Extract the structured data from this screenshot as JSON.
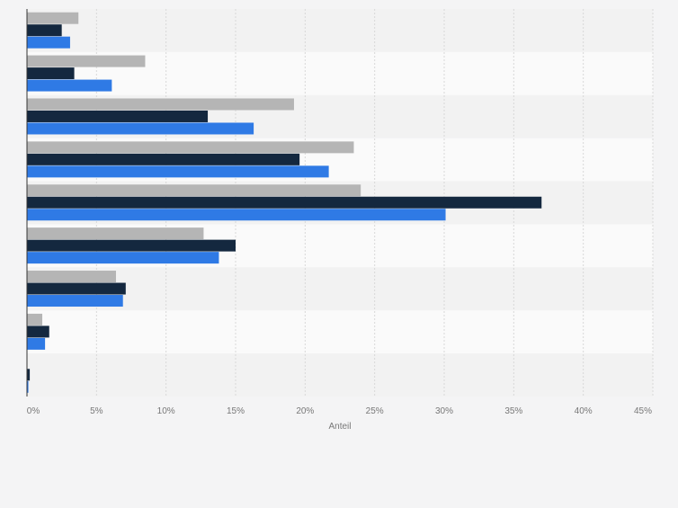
{
  "chart_data": {
    "type": "bar",
    "orientation": "horizontal",
    "categories": [
      "",
      "",
      "",
      "",
      "",
      "",
      "",
      "",
      ""
    ],
    "series": [
      {
        "color": "#b5b5b5",
        "values": [
          3.7,
          8.5,
          19.2,
          23.5,
          24.0,
          12.7,
          6.4,
          1.1,
          0.0
        ]
      },
      {
        "color": "#14283f",
        "values": [
          2.5,
          3.4,
          13.0,
          19.6,
          37.0,
          15.0,
          7.1,
          1.6,
          0.2
        ]
      },
      {
        "color": "#2f7ae5",
        "values": [
          3.1,
          6.1,
          16.3,
          21.7,
          30.1,
          13.8,
          6.9,
          1.3,
          0.1
        ]
      }
    ],
    "xlim": [
      0,
      45
    ],
    "xticks": [
      "0%",
      "5%",
      "10%",
      "15%",
      "20%",
      "25%",
      "30%",
      "35%",
      "40%",
      "45%"
    ],
    "xlabel": "Anteil",
    "grid": true,
    "band_colors": [
      "#f2f2f2",
      "#fafafa"
    ],
    "grid_color": "#d8d8d8",
    "axis_color": "#333333",
    "tick_color": "#777777"
  }
}
